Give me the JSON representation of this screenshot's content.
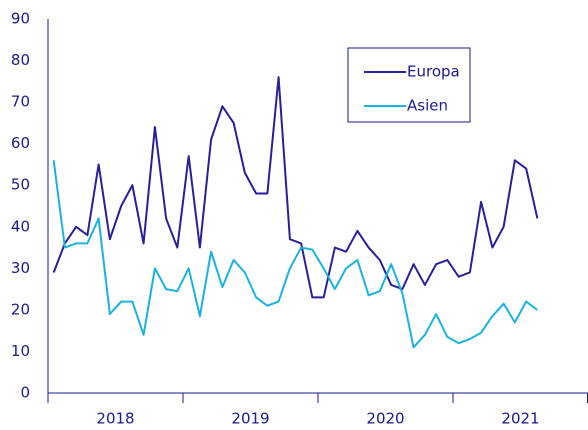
{
  "chart_data": {
    "type": "line",
    "x": [
      2018.042,
      2018.125,
      2018.208,
      2018.292,
      2018.375,
      2018.458,
      2018.542,
      2018.625,
      2018.708,
      2018.792,
      2018.875,
      2018.958,
      2019.042,
      2019.125,
      2019.208,
      2019.292,
      2019.375,
      2019.458,
      2019.542,
      2019.625,
      2019.708,
      2019.792,
      2019.875,
      2019.958,
      2020.042,
      2020.125,
      2020.208,
      2020.292,
      2020.375,
      2020.458,
      2020.542,
      2020.625,
      2020.708,
      2020.792,
      2020.875,
      2020.958,
      2021.042,
      2021.125,
      2021.208,
      2021.292,
      2021.375,
      2021.458,
      2021.542,
      2021.625
    ],
    "series": [
      {
        "name": "Europa",
        "color": "#2a1f9a",
        "values": [
          29,
          36,
          40,
          38,
          55,
          37,
          45,
          50,
          36,
          64,
          42,
          35,
          57,
          35,
          61,
          69,
          65,
          53,
          48,
          48,
          76,
          37,
          36,
          23,
          23,
          35,
          34,
          39,
          35,
          32,
          26,
          25,
          31,
          26,
          31,
          32,
          28,
          29,
          46,
          35,
          40,
          56,
          54,
          42
        ]
      },
      {
        "name": "Asien",
        "color": "#1ab2e0",
        "values": [
          56,
          35,
          36,
          36,
          42,
          19,
          22,
          22,
          14,
          30,
          25,
          24.5,
          30,
          18.5,
          34,
          25.5,
          32,
          29,
          23,
          21,
          22,
          30,
          35,
          34.5,
          30,
          25,
          30,
          32,
          23.5,
          24.5,
          31,
          24,
          11,
          14,
          19,
          13.5,
          12,
          13,
          14.5,
          18.5,
          21.5,
          17,
          22,
          20
        ]
      }
    ],
    "xlim": [
      2018,
      2022
    ],
    "xticks": [
      {
        "value": 2018.5,
        "label": "2018"
      },
      {
        "value": 2019.5,
        "label": "2019"
      },
      {
        "value": 2020.5,
        "label": "2020"
      },
      {
        "value": 2021.5,
        "label": "2021"
      }
    ],
    "xtick_marks": [
      2018,
      2019,
      2020,
      2021,
      2022
    ],
    "ylim": [
      0,
      90
    ],
    "yticks": [
      0,
      10,
      20,
      30,
      40,
      50,
      60,
      70,
      80,
      90
    ],
    "legend": "upper right"
  }
}
